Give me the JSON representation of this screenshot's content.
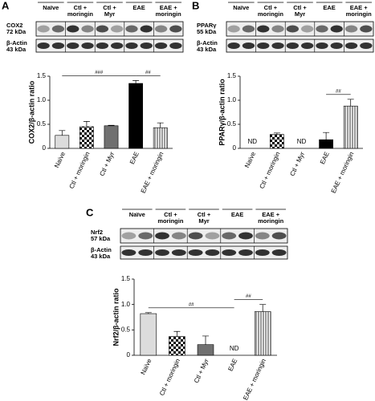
{
  "chart_data": [
    {
      "type": "bar",
      "panel": "A",
      "ylabel": "COX2/β-actin ratio",
      "blot_groups": [
        [
          "Naïve"
        ],
        [
          "Ctl +",
          "moringin"
        ],
        [
          "Ctl +",
          "Myr"
        ],
        [
          "EAE"
        ],
        [
          "EAE +",
          "moringin"
        ]
      ],
      "blot_rows": [
        [
          "COX2",
          "72 kDa"
        ],
        [
          "β-Actin",
          "43 kDa"
        ]
      ],
      "categories": [
        "Naïve",
        "Ctl + moringin",
        "Ctl + Myr",
        "EAE",
        "EAE + moringin"
      ],
      "values": [
        0.27,
        0.45,
        0.47,
        1.35,
        0.43
      ],
      "errors": [
        0.1,
        0.11,
        0.01,
        0.06,
        0.1
      ],
      "colors": [
        "#dcdcdc",
        "checker",
        "#707070",
        "#000000",
        "stripes"
      ],
      "ylim": [
        0,
        1.5
      ],
      "yticks": [
        0,
        0.5,
        {
          "value": 1,
          "label": "1.0"
        },
        1.5
      ],
      "significance": [
        {
          "from": 0,
          "to": 3,
          "label": "###"
        },
        {
          "from": 3,
          "to": 4,
          "label": "##"
        }
      ]
    },
    {
      "type": "bar",
      "panel": "B",
      "ylabel": "PPARγ/β-actin ratio",
      "blot_groups": [
        [
          "Naïve"
        ],
        [
          "Ctl +",
          "moringin"
        ],
        [
          "Ctl +",
          "Myr"
        ],
        [
          "EAE"
        ],
        [
          "EAE +",
          "moringin"
        ]
      ],
      "blot_rows": [
        [
          "PPARγ",
          "55 kDa"
        ],
        [
          "β-Actin",
          "43 kDa"
        ]
      ],
      "categories": [
        "Naïve",
        "Ctl + moringin",
        "Ctl + Myr",
        "EAE",
        "EAE + moringin"
      ],
      "values": [
        null,
        0.29,
        null,
        0.18,
        0.88
      ],
      "errors": [
        null,
        0.03,
        null,
        0.15,
        0.14
      ],
      "value_labels": [
        "ND",
        null,
        "ND",
        null,
        null
      ],
      "colors": [
        "#dcdcdc",
        "checker",
        "#707070",
        "#000000",
        "stripes"
      ],
      "ylim": [
        0,
        1.5
      ],
      "yticks": [
        0,
        0.5,
        {
          "value": 1,
          "label": "1.0"
        },
        1.5
      ],
      "significance": [
        {
          "from": 3,
          "to": 4,
          "label": "##"
        }
      ]
    },
    {
      "type": "bar",
      "panel": "C",
      "ylabel": "Nrf2/β-actin ratio",
      "blot_groups": [
        [
          "Naïve"
        ],
        [
          "Ctl +",
          "moringin"
        ],
        [
          "Ctl +",
          "Myr"
        ],
        [
          "EAE"
        ],
        [
          "EAE +",
          "moringin"
        ]
      ],
      "blot_rows": [
        [
          "Nrf2",
          "57 kDa"
        ],
        [
          "β-Actin",
          "43 kDa"
        ]
      ],
      "categories": [
        "Naïve",
        "Ctl + moringin",
        "Ctl + Myr",
        "EAE",
        "EAE + moringin"
      ],
      "values": [
        0.82,
        0.37,
        0.21,
        null,
        0.86
      ],
      "errors": [
        0.02,
        0.1,
        0.17,
        null,
        0.14
      ],
      "value_labels": [
        null,
        null,
        null,
        "ND",
        null
      ],
      "colors": [
        "#dcdcdc",
        "checker",
        "#707070",
        "#000000",
        "stripes"
      ],
      "ylim": [
        0,
        1.5
      ],
      "yticks": [
        0,
        0.5,
        {
          "value": 1,
          "label": "1.0"
        },
        1.5
      ],
      "significance": [
        {
          "from": 0,
          "to": 3,
          "label": "##"
        },
        {
          "from": 3,
          "to": 4,
          "label": "##"
        }
      ]
    }
  ]
}
